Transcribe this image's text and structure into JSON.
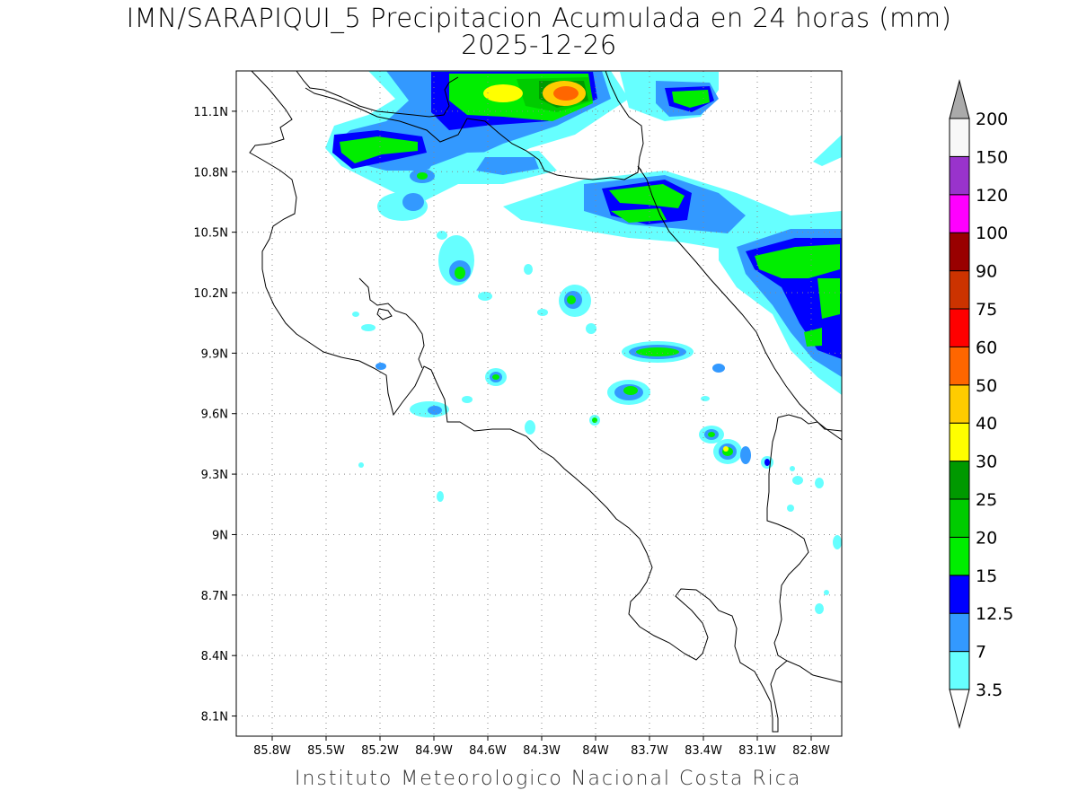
{
  "title": "IMN/SARAPIQUI_5 Precipitacion Acumulada en 24 horas (mm)",
  "date": "2025-12-26",
  "credit": "Instituto Meteorologico Nacional Costa Rica",
  "map": {
    "lon_range": [
      -86.0,
      -82.63
    ],
    "lat_range": [
      8.0,
      11.3
    ],
    "lon_ticks": [
      {
        "value": -85.8,
        "label": "85.8W"
      },
      {
        "value": -85.5,
        "label": "85.5W"
      },
      {
        "value": -85.2,
        "label": "85.2W"
      },
      {
        "value": -84.9,
        "label": "84.9W"
      },
      {
        "value": -84.6,
        "label": "84.6W"
      },
      {
        "value": -84.3,
        "label": "84.3W"
      },
      {
        "value": -84.0,
        "label": "84W"
      },
      {
        "value": -83.7,
        "label": "83.7W"
      },
      {
        "value": -83.4,
        "label": "83.4W"
      },
      {
        "value": -83.1,
        "label": "83.1W"
      },
      {
        "value": -82.8,
        "label": "82.8W"
      }
    ],
    "lat_ticks": [
      {
        "value": 11.1,
        "label": "11.1N"
      },
      {
        "value": 10.8,
        "label": "10.8N"
      },
      {
        "value": 10.5,
        "label": "10.5N"
      },
      {
        "value": 10.2,
        "label": "10.2N"
      },
      {
        "value": 9.9,
        "label": "9.9N"
      },
      {
        "value": 9.6,
        "label": "9.6N"
      },
      {
        "value": 9.3,
        "label": "9.3N"
      },
      {
        "value": 9.0,
        "label": "9N"
      },
      {
        "value": 8.7,
        "label": "8.7N"
      },
      {
        "value": 8.4,
        "label": "8.4N"
      },
      {
        "value": 8.1,
        "label": "8.1N"
      }
    ],
    "gridlines": "dotted"
  },
  "colorbar": {
    "labels": [
      "3.5",
      "7",
      "12.5",
      "15",
      "20",
      "25",
      "30",
      "40",
      "50",
      "60",
      "75",
      "90",
      "100",
      "120",
      "150",
      "200"
    ],
    "colors": [
      "#66ffff",
      "#3399ff",
      "#0000ff",
      "#00ee00",
      "#00cc00",
      "#009900",
      "#ffff00",
      "#ffcc00",
      "#ff6600",
      "#ff0000",
      "#cc3300",
      "#990000",
      "#ff00ff",
      "#9933cc",
      "#f8f8f8"
    ],
    "over_color": "#aaaaaa",
    "under_color": "#ffffff"
  }
}
